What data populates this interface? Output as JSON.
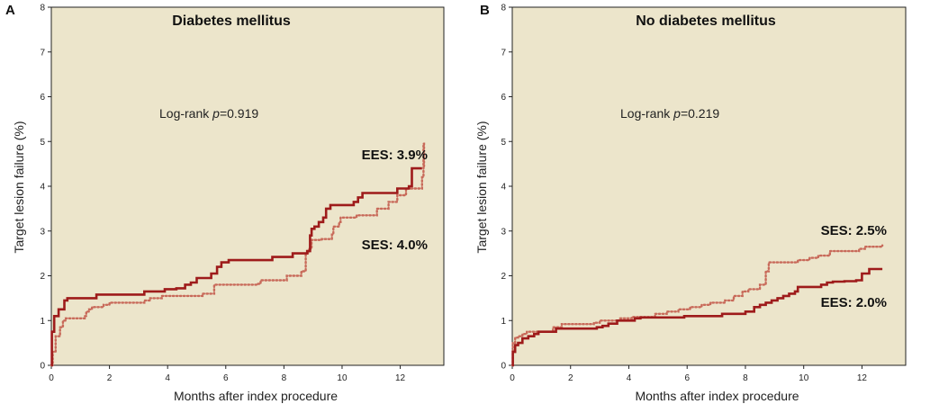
{
  "chart_data": [
    {
      "type": "line",
      "panel": "A",
      "title": "Diabetes mellitus",
      "xlabel": "Months after index procedure",
      "ylabel": "Target lesion failure (%)",
      "xlim": [
        0,
        13.5
      ],
      "ylim": [
        0,
        8
      ],
      "xticks": [
        0,
        2,
        4,
        6,
        8,
        10,
        12
      ],
      "yticks": [
        0,
        1,
        2,
        3,
        4,
        5,
        6,
        7,
        8
      ],
      "annotation": {
        "prefix": "Log-rank ",
        "p": "p",
        "value": "=0.919"
      },
      "series": [
        {
          "name": "EES: 3.9%",
          "style": "solid",
          "color": "#9e1b1b",
          "points": [
            [
              0,
              0
            ],
            [
              0.02,
              0.75
            ],
            [
              0.1,
              1.1
            ],
            [
              0.25,
              1.25
            ],
            [
              0.45,
              1.45
            ],
            [
              0.55,
              1.5
            ],
            [
              1.55,
              1.58
            ],
            [
              3.2,
              1.65
            ],
            [
              3.9,
              1.7
            ],
            [
              4.3,
              1.72
            ],
            [
              4.6,
              1.8
            ],
            [
              4.8,
              1.85
            ],
            [
              5.0,
              1.95
            ],
            [
              5.5,
              2.05
            ],
            [
              5.7,
              2.2
            ],
            [
              5.85,
              2.3
            ],
            [
              6.1,
              2.35
            ],
            [
              7.6,
              2.42
            ],
            [
              8.3,
              2.5
            ],
            [
              8.8,
              2.55
            ],
            [
              8.9,
              2.9
            ],
            [
              8.95,
              3.05
            ],
            [
              9.05,
              3.1
            ],
            [
              9.2,
              3.2
            ],
            [
              9.35,
              3.3
            ],
            [
              9.45,
              3.5
            ],
            [
              9.6,
              3.58
            ],
            [
              10.4,
              3.65
            ],
            [
              10.55,
              3.75
            ],
            [
              10.7,
              3.85
            ],
            [
              11.9,
              3.95
            ],
            [
              12.3,
              4.0
            ],
            [
              12.4,
              4.4
            ],
            [
              12.75,
              4.4
            ]
          ]
        },
        {
          "name": "SES: 4.0%",
          "style": "dotted",
          "color": "#c86a5a",
          "points": [
            [
              0,
              0
            ],
            [
              0.05,
              0.3
            ],
            [
              0.15,
              0.65
            ],
            [
              0.3,
              0.85
            ],
            [
              0.4,
              1.0
            ],
            [
              0.5,
              1.05
            ],
            [
              1.15,
              1.1
            ],
            [
              1.2,
              1.2
            ],
            [
              1.3,
              1.25
            ],
            [
              1.4,
              1.3
            ],
            [
              1.8,
              1.35
            ],
            [
              2.0,
              1.4
            ],
            [
              3.2,
              1.45
            ],
            [
              3.4,
              1.5
            ],
            [
              3.8,
              1.55
            ],
            [
              5.2,
              1.6
            ],
            [
              5.6,
              1.8
            ],
            [
              7.1,
              1.82
            ],
            [
              7.2,
              1.9
            ],
            [
              8.1,
              2.0
            ],
            [
              8.6,
              2.1
            ],
            [
              8.75,
              2.5
            ],
            [
              8.85,
              2.6
            ],
            [
              8.95,
              2.8
            ],
            [
              9.3,
              2.82
            ],
            [
              9.65,
              2.92
            ],
            [
              9.7,
              3.1
            ],
            [
              9.9,
              3.2
            ],
            [
              9.95,
              3.3
            ],
            [
              10.5,
              3.35
            ],
            [
              11.2,
              3.5
            ],
            [
              11.6,
              3.65
            ],
            [
              11.9,
              3.8
            ],
            [
              12.2,
              3.95
            ],
            [
              12.75,
              4.2
            ],
            [
              12.8,
              4.95
            ],
            [
              12.82,
              4.4
            ]
          ]
        }
      ]
    },
    {
      "type": "line",
      "panel": "B",
      "title": "No diabetes mellitus",
      "xlabel": "Months after index procedure",
      "ylabel": "Target lesion failure (%)",
      "xlim": [
        0,
        13.5
      ],
      "ylim": [
        0,
        8
      ],
      "xticks": [
        0,
        2,
        4,
        6,
        8,
        10,
        12
      ],
      "yticks": [
        0,
        1,
        2,
        3,
        4,
        5,
        6,
        7,
        8
      ],
      "annotation": {
        "prefix": "Log-rank ",
        "p": "p",
        "value": "=0.219"
      },
      "series": [
        {
          "name": "EES: 2.0%",
          "style": "solid",
          "color": "#9e1b1b",
          "points": [
            [
              0,
              0
            ],
            [
              0.02,
              0.3
            ],
            [
              0.1,
              0.45
            ],
            [
              0.2,
              0.5
            ],
            [
              0.35,
              0.6
            ],
            [
              0.55,
              0.65
            ],
            [
              0.75,
              0.7
            ],
            [
              0.9,
              0.75
            ],
            [
              1.5,
              0.82
            ],
            [
              2.9,
              0.85
            ],
            [
              3.1,
              0.88
            ],
            [
              3.3,
              0.93
            ],
            [
              3.6,
              1.0
            ],
            [
              4.2,
              1.05
            ],
            [
              4.4,
              1.07
            ],
            [
              5.9,
              1.1
            ],
            [
              7.2,
              1.15
            ],
            [
              8.0,
              1.2
            ],
            [
              8.3,
              1.3
            ],
            [
              8.5,
              1.35
            ],
            [
              8.7,
              1.4
            ],
            [
              8.9,
              1.45
            ],
            [
              9.1,
              1.5
            ],
            [
              9.3,
              1.55
            ],
            [
              9.5,
              1.6
            ],
            [
              9.7,
              1.65
            ],
            [
              9.8,
              1.75
            ],
            [
              10.6,
              1.8
            ],
            [
              10.8,
              1.85
            ],
            [
              11.0,
              1.87
            ],
            [
              11.4,
              1.88
            ],
            [
              11.8,
              1.9
            ],
            [
              12.0,
              2.05
            ],
            [
              12.25,
              2.15
            ],
            [
              12.7,
              2.15
            ]
          ]
        },
        {
          "name": "SES: 2.5%",
          "style": "dotted",
          "color": "#c86a5a",
          "points": [
            [
              0,
              0
            ],
            [
              0.02,
              0.5
            ],
            [
              0.1,
              0.62
            ],
            [
              0.2,
              0.65
            ],
            [
              0.35,
              0.7
            ],
            [
              0.5,
              0.75
            ],
            [
              1.4,
              0.85
            ],
            [
              1.7,
              0.92
            ],
            [
              2.8,
              0.95
            ],
            [
              3.0,
              1.0
            ],
            [
              3.7,
              1.05
            ],
            [
              4.1,
              1.08
            ],
            [
              4.9,
              1.15
            ],
            [
              5.3,
              1.2
            ],
            [
              5.7,
              1.25
            ],
            [
              6.1,
              1.3
            ],
            [
              6.5,
              1.35
            ],
            [
              6.8,
              1.4
            ],
            [
              7.3,
              1.45
            ],
            [
              7.6,
              1.55
            ],
            [
              7.9,
              1.65
            ],
            [
              8.1,
              1.7
            ],
            [
              8.5,
              1.8
            ],
            [
              8.7,
              2.1
            ],
            [
              8.8,
              2.3
            ],
            [
              9.8,
              2.35
            ],
            [
              10.2,
              2.4
            ],
            [
              10.5,
              2.45
            ],
            [
              10.9,
              2.55
            ],
            [
              11.9,
              2.6
            ],
            [
              12.1,
              2.65
            ],
            [
              12.7,
              2.68
            ]
          ]
        }
      ]
    }
  ]
}
